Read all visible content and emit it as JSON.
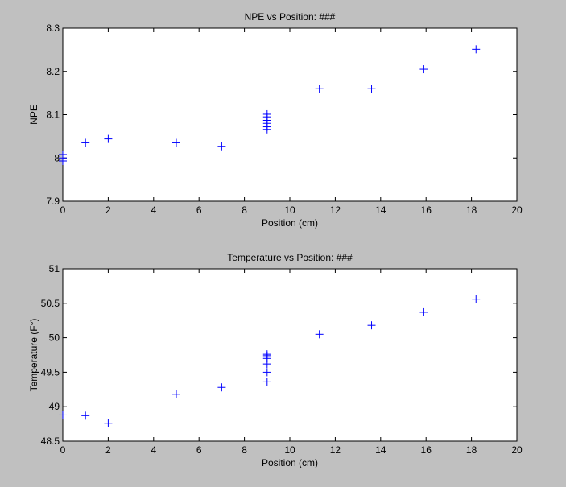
{
  "figure": {
    "background": "#c0c0c0",
    "axes_background": "#ffffff",
    "marker_color": "#0000ff"
  },
  "chart_data": [
    {
      "type": "scatter",
      "title": "NPE vs Position: ###",
      "xlabel": "Position (cm)",
      "ylabel": "NPE",
      "xlim": [
        0,
        20
      ],
      "ylim": [
        7.9,
        8.3
      ],
      "xticks": [
        0,
        2,
        4,
        6,
        8,
        10,
        12,
        14,
        16,
        18,
        20
      ],
      "yticks": [
        7.9,
        8,
        8.1,
        8.2,
        8.3
      ],
      "xtick_labels": [
        "0",
        "2",
        "4",
        "6",
        "8",
        "10",
        "12",
        "14",
        "16",
        "18",
        "20"
      ],
      "ytick_labels": [
        "7.9",
        "8",
        "8.1",
        "8.2",
        "8.3"
      ],
      "grid": false,
      "marker": "+",
      "series": [
        {
          "x": [
            0,
            0,
            0,
            1,
            2,
            5,
            7,
            9,
            9,
            9,
            9,
            9,
            9,
            11.3,
            13.6,
            15.9,
            18.2
          ],
          "y": [
            7.993,
            8.0,
            8.008,
            8.035,
            8.044,
            8.035,
            8.027,
            8.066,
            8.072,
            8.08,
            8.087,
            8.095,
            8.101,
            8.16,
            8.16,
            8.205,
            8.251
          ]
        }
      ]
    },
    {
      "type": "scatter",
      "title": "Temperature vs Position: ###",
      "xlabel": "Position (cm)",
      "ylabel": "Temperature (F°)",
      "xlim": [
        0,
        20
      ],
      "ylim": [
        48.5,
        51
      ],
      "xticks": [
        0,
        2,
        4,
        6,
        8,
        10,
        12,
        14,
        16,
        18,
        20
      ],
      "yticks": [
        48.5,
        49,
        49.5,
        50,
        50.5,
        51
      ],
      "xtick_labels": [
        "0",
        "2",
        "4",
        "6",
        "8",
        "10",
        "12",
        "14",
        "16",
        "18",
        "20"
      ],
      "ytick_labels": [
        "48.5",
        "49",
        "49.5",
        "50",
        "50.5",
        "51"
      ],
      "grid": false,
      "marker": "+",
      "series": [
        {
          "x": [
            0,
            1,
            2,
            5,
            7,
            9,
            9,
            9,
            9,
            9,
            9,
            11.3,
            13.6,
            15.9,
            18.2
          ],
          "y": [
            48.88,
            48.87,
            48.76,
            49.18,
            49.28,
            49.36,
            49.5,
            49.62,
            49.7,
            49.74,
            49.76,
            50.05,
            50.18,
            50.37,
            50.56
          ]
        }
      ]
    }
  ]
}
